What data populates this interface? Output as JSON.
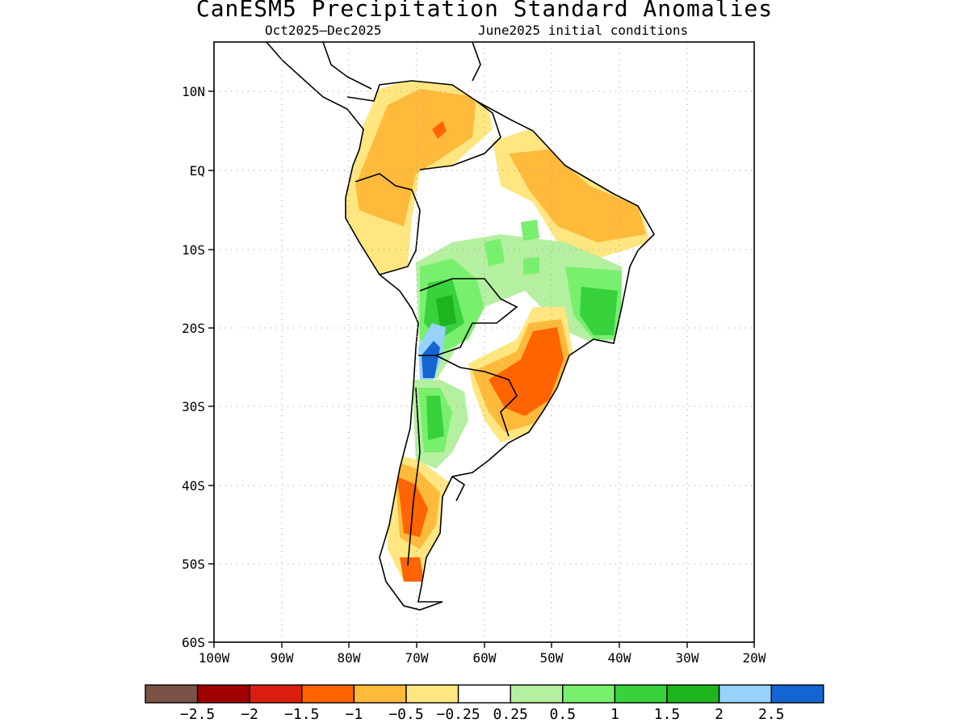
{
  "title": "CanESM5 Precipitation Standard Anomalies",
  "subtitle_left": "Oct2025–Dec2025",
  "subtitle_right": "June2025 initial conditions",
  "axes": {
    "lat_labels": [
      "10N",
      "EQ",
      "10S",
      "20S",
      "30S",
      "40S",
      "50S",
      "60S"
    ],
    "lon_labels": [
      "100W",
      "90W",
      "80W",
      "70W",
      "60W",
      "50W",
      "40W",
      "30W",
      "20W"
    ]
  },
  "colorbar": {
    "colors": [
      "#7a5246",
      "#a00000",
      "#dc1e10",
      "#ff6400",
      "#ffba3c",
      "#ffe680",
      "#ffffff",
      "#b4f0a0",
      "#78f06e",
      "#37d23c",
      "#1eb41e",
      "#96d2fa",
      "#1464d2"
    ],
    "labels": [
      "−2.5",
      "−2",
      "−1.5",
      "−1",
      "−0.5",
      "−0.25",
      "0.25",
      "0.5",
      "1",
      "1.5",
      "2",
      "2.5"
    ]
  }
}
